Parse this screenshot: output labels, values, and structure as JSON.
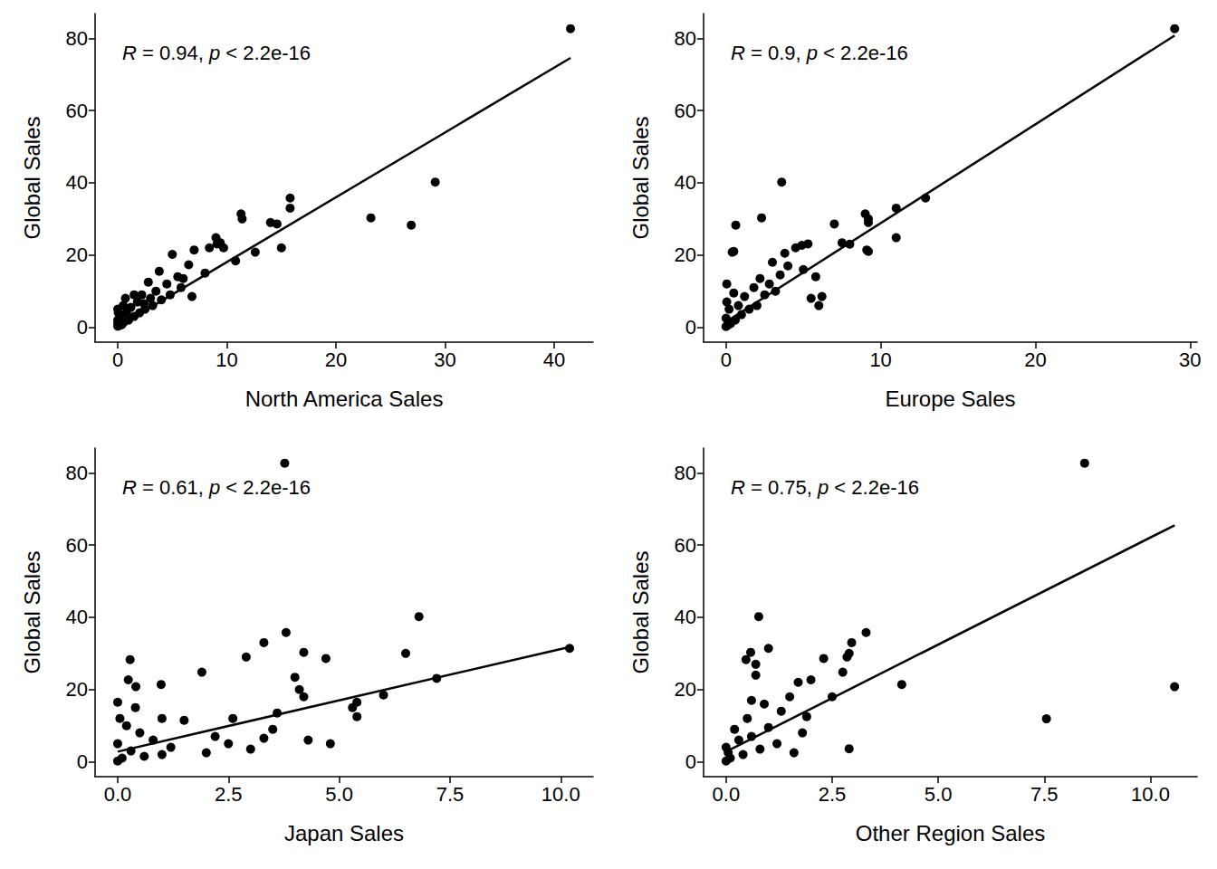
{
  "chart_data": [
    {
      "type": "scatter",
      "x_label": "North America Sales",
      "y_label": "Global Sales",
      "annotation": "R = 0.94, p < 2.2e-16",
      "color": "#000000",
      "xlim": [
        -2.08,
        43.57
      ],
      "ylim": [
        -4.13,
        86.88
      ],
      "xticks": [
        0,
        10,
        20,
        30,
        40
      ],
      "yticks": [
        0,
        20,
        40,
        60,
        80
      ],
      "x": [
        41.5,
        29.1,
        26.9,
        23.2,
        15.8,
        15.8,
        15.0,
        14.6,
        14.0,
        12.6,
        11.3,
        11.4,
        10.8,
        9.7,
        9.0,
        9.4,
        9.1,
        8.4,
        8.0,
        7.0,
        6.8,
        6.5,
        6.0,
        5.8,
        5.0,
        5.5,
        4.8,
        4.5,
        4.0,
        3.8,
        3.5,
        3.2,
        3.0,
        2.8,
        2.5,
        2.2,
        2.0,
        1.8,
        1.5,
        1.2,
        1.0,
        0.8,
        0.6,
        0.5,
        0.4,
        0.3,
        0.2,
        0.1,
        0,
        0,
        0,
        0.05,
        0.7,
        1.5,
        2.4,
        0
      ],
      "y": [
        82.7,
        40.2,
        28.3,
        30.3,
        35.8,
        33.0,
        22.0,
        28.6,
        29.0,
        20.8,
        31.4,
        30.0,
        18.4,
        22.0,
        24.8,
        23.4,
        23.1,
        22.0,
        15.0,
        21.4,
        8.5,
        17.3,
        13.5,
        11.0,
        20.2,
        14.0,
        9.0,
        12.0,
        7.6,
        15.5,
        10.0,
        6.0,
        8.0,
        12.5,
        5.0,
        9.0,
        4.0,
        7.0,
        3.0,
        5.5,
        2.0,
        4.0,
        1.5,
        6.0,
        0.8,
        3.5,
        0.5,
        1.0,
        0.3,
        2.0,
        5.0,
        4.0,
        8.0,
        9.0,
        6.5,
        1.0
      ],
      "fit": {
        "x": [
          0,
          41.5
        ],
        "y": [
          0.1,
          74.6
        ]
      }
    },
    {
      "type": "scatter",
      "x_label": "Europe Sales",
      "y_label": "Global Sales",
      "annotation": "R = 0.9, p < 2.2e-16",
      "color": "#000000",
      "xlim": [
        -1.45,
        30.45
      ],
      "ylim": [
        -4.13,
        86.88
      ],
      "xticks": [
        0,
        10,
        20,
        30
      ],
      "yticks": [
        0,
        20,
        40,
        60,
        80
      ],
      "x": [
        29.0,
        12.9,
        11.0,
        11.0,
        9.2,
        9.2,
        9.0,
        9.2,
        9.1,
        7.0,
        7.5,
        8.0,
        5.3,
        4.9,
        4.5,
        3.6,
        3.8,
        2.3,
        0.63,
        0.4,
        0.05,
        6.2,
        6.0,
        5.8,
        5.5,
        5.0,
        4.0,
        3.5,
        3.2,
        3.0,
        2.8,
        2.5,
        2.2,
        2.0,
        1.8,
        1.5,
        1.2,
        1.0,
        0.8,
        0.6,
        0.5,
        0.3,
        0.2,
        0.1,
        0,
        0,
        0.05,
        0.5
      ],
      "y": [
        82.7,
        35.8,
        33.0,
        24.8,
        30.0,
        29.0,
        31.4,
        21.0,
        21.4,
        28.6,
        23.4,
        23.0,
        23.1,
        22.7,
        22.0,
        40.2,
        20.5,
        30.3,
        28.3,
        20.8,
        12.0,
        8.5,
        6.0,
        14.0,
        8.0,
        16.0,
        17.0,
        14.5,
        10.0,
        18.0,
        12.0,
        9.0,
        13.5,
        6.0,
        11.0,
        5.0,
        8.5,
        3.5,
        6.0,
        2.0,
        9.5,
        1.0,
        5.0,
        0.5,
        2.5,
        0.2,
        7.0,
        21.0
      ],
      "fit": {
        "x": [
          0,
          29.0
        ],
        "y": [
          1.5,
          80.8
        ]
      }
    },
    {
      "type": "scatter",
      "x_label": "Japan Sales",
      "y_label": "Global Sales",
      "annotation": "R = 0.61, p < 2.2e-16",
      "color": "#000000",
      "xlim": [
        -0.51,
        10.73
      ],
      "ylim": [
        -4.13,
        86.88
      ],
      "xticks": [
        {
          "value": 0,
          "label": "0.0"
        },
        {
          "value": 2.5,
          "label": "2.5"
        },
        {
          "value": 5,
          "label": "5.0"
        },
        {
          "value": 7.5,
          "label": "7.5"
        },
        {
          "value": 10,
          "label": "10.0"
        }
      ],
      "yticks": [
        0,
        20,
        40,
        60,
        80
      ],
      "x": [
        3.77,
        6.8,
        3.8,
        3.3,
        10.2,
        4.2,
        6.5,
        2.9,
        4.7,
        0.28,
        1.9,
        4.0,
        7.2,
        0.24,
        0.98,
        0.41,
        6.0,
        5.4,
        5.3,
        5.4,
        4.8,
        4.2,
        4.3,
        4.1,
        3.6,
        3.5,
        3.0,
        2.6,
        2.5,
        2.2,
        2.0,
        1.5,
        1.2,
        1.0,
        0.8,
        0.6,
        0.5,
        0.4,
        0.3,
        0.2,
        0.1,
        0,
        0,
        0,
        0.05,
        1.0,
        3.3
      ],
      "y": [
        82.7,
        40.2,
        35.8,
        33.0,
        31.4,
        30.3,
        30.0,
        29.0,
        28.6,
        28.3,
        24.8,
        23.4,
        23.1,
        22.7,
        21.4,
        20.8,
        18.5,
        16.5,
        15.0,
        12.5,
        5.0,
        18.0,
        6.0,
        20.0,
        13.5,
        9.0,
        3.5,
        12.0,
        5.0,
        7.0,
        2.5,
        11.5,
        4.0,
        12.0,
        6.0,
        1.5,
        8.0,
        15.0,
        3.0,
        10.0,
        1.0,
        16.5,
        5.0,
        0.2,
        12.0,
        2.0,
        6.5
      ],
      "fit": {
        "x": [
          0,
          10.2
        ],
        "y": [
          2.8,
          31.8
        ]
      }
    },
    {
      "type": "scatter",
      "x_label": "Other Region Sales",
      "y_label": "Global Sales",
      "annotation": "R = 0.75, p < 2.2e-16",
      "color": "#000000",
      "xlim": [
        -0.53,
        11.1
      ],
      "ylim": [
        -4.13,
        86.88
      ],
      "xticks": [
        {
          "value": 0,
          "label": "0.0"
        },
        {
          "value": 2.5,
          "label": "2.5"
        },
        {
          "value": 5,
          "label": "5.0"
        },
        {
          "value": 7.5,
          "label": "7.5"
        },
        {
          "value": 10,
          "label": "10.0"
        }
      ],
      "yticks": [
        0,
        20,
        40,
        60,
        80
      ],
      "x": [
        8.45,
        0.77,
        3.3,
        2.96,
        1.0,
        0.58,
        2.9,
        2.85,
        2.3,
        0.47,
        2.75,
        4.14,
        10.57,
        7.55,
        2.9,
        2.0,
        1.7,
        1.9,
        1.5,
        1.8,
        1.3,
        1.2,
        1.0,
        0.9,
        0.8,
        0.7,
        0.6,
        0.5,
        0.4,
        0.3,
        0.2,
        0.1,
        0,
        0,
        0.05,
        2.5,
        1.6,
        0.6,
        0.7
      ],
      "y": [
        82.7,
        40.2,
        35.8,
        33.0,
        31.4,
        30.3,
        30.0,
        29.0,
        28.6,
        28.3,
        24.8,
        21.4,
        20.8,
        11.9,
        3.6,
        22.7,
        22.0,
        12.5,
        18.0,
        8.0,
        14.0,
        5.0,
        9.5,
        16.0,
        3.5,
        24.0,
        7.0,
        12.0,
        2.0,
        6.0,
        9.0,
        1.0,
        0.2,
        4.0,
        2.5,
        18.0,
        2.5,
        17.0,
        27.0
      ],
      "fit": {
        "x": [
          0,
          10.57
        ],
        "y": [
          2.8,
          65.5
        ]
      }
    }
  ]
}
